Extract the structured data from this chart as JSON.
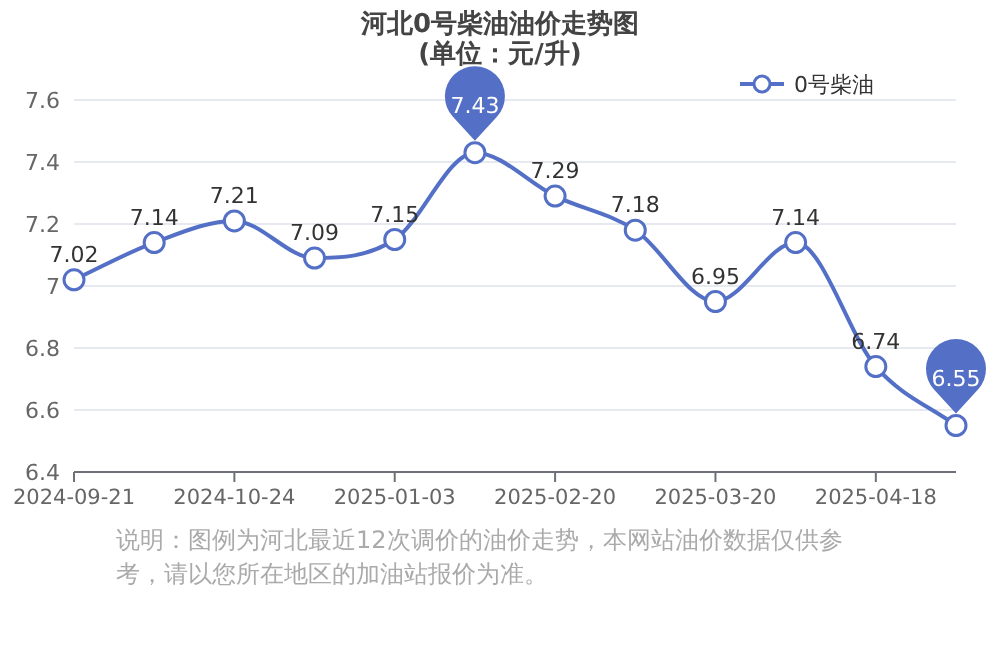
{
  "chart_data": {
    "type": "line",
    "title": "河北0号柴油油价走势图",
    "subtitle": "(单位：元/升)",
    "categories": [
      "2024-09-21",
      null,
      "2024-10-24",
      null,
      "2025-01-03",
      null,
      "2025-02-20",
      null,
      "2025-03-20",
      null,
      "2025-04-18",
      null
    ],
    "series": [
      {
        "name": "0号柴油",
        "color": "#5470c6",
        "values": [
          7.02,
          7.14,
          7.21,
          7.09,
          7.15,
          7.43,
          7.29,
          7.18,
          6.95,
          7.14,
          6.74,
          6.55
        ]
      }
    ],
    "ylim": [
      6.4,
      7.6
    ],
    "yticks": [
      {
        "value": 6.4,
        "label": "6.4"
      },
      {
        "value": 6.6,
        "label": "6.6"
      },
      {
        "value": 6.8,
        "label": "6.8"
      },
      {
        "value": 7,
        "label": "7"
      },
      {
        "value": 7.2,
        "label": "7.2"
      },
      {
        "value": 7.4,
        "label": "7.4"
      },
      {
        "value": 7.6,
        "label": "7.6"
      }
    ],
    "grid": "y",
    "legend": "top right",
    "marker": "circle",
    "data_labels": true,
    "annotations": [
      "说明：图例为河北最近12次调价的油价走势，本网站油价数据仅供参考，请以您所在地区的加油站报价为准。"
    ]
  }
}
